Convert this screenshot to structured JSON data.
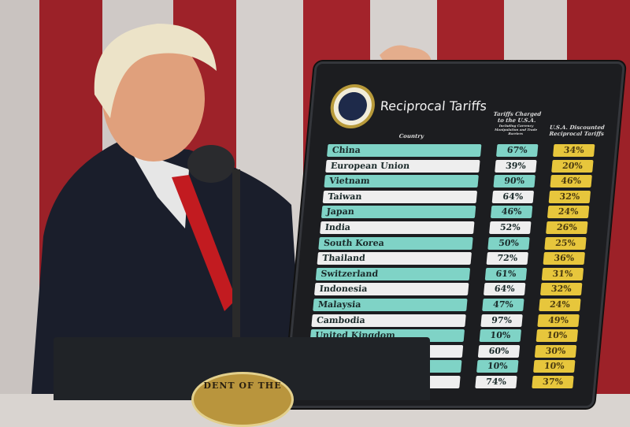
{
  "board": {
    "title": "Reciprocal Tariffs",
    "country_header": "Country",
    "tariffs_header": "Tariffs Charged to the U.S.A.",
    "tariffs_subheader": "Including Currency Manipulation and Trade Barriers",
    "discount_header": "U.S.A. Discounted Reciprocal Tariffs",
    "rows": [
      {
        "country": "China",
        "charged": "67%",
        "reciprocal": "34%"
      },
      {
        "country": "European Union",
        "charged": "39%",
        "reciprocal": "20%"
      },
      {
        "country": "Vietnam",
        "charged": "90%",
        "reciprocal": "46%"
      },
      {
        "country": "Taiwan",
        "charged": "64%",
        "reciprocal": "32%"
      },
      {
        "country": "Japan",
        "charged": "46%",
        "reciprocal": "24%"
      },
      {
        "country": "India",
        "charged": "52%",
        "reciprocal": "26%"
      },
      {
        "country": "South Korea",
        "charged": "50%",
        "reciprocal": "25%"
      },
      {
        "country": "Thailand",
        "charged": "72%",
        "reciprocal": "36%"
      },
      {
        "country": "Switzerland",
        "charged": "61%",
        "reciprocal": "31%"
      },
      {
        "country": "Indonesia",
        "charged": "64%",
        "reciprocal": "32%"
      },
      {
        "country": "Malaysia",
        "charged": "47%",
        "reciprocal": "24%"
      },
      {
        "country": "Cambodia",
        "charged": "97%",
        "reciprocal": "49%"
      },
      {
        "country": "United Kingdom",
        "charged": "10%",
        "reciprocal": "10%"
      },
      {
        "country": "",
        "charged": "60%",
        "reciprocal": "30%"
      },
      {
        "country": "",
        "charged": "10%",
        "reciprocal": "10%"
      },
      {
        "country": "",
        "charged": "74%",
        "reciprocal": "37%"
      }
    ]
  },
  "podium": {
    "seal_text": "DENT OF THE"
  },
  "colors": {
    "teal": "#7fd3c6",
    "white": "#eeeeee",
    "gold": "#e7c63c",
    "flag_red": "#a8232b"
  }
}
